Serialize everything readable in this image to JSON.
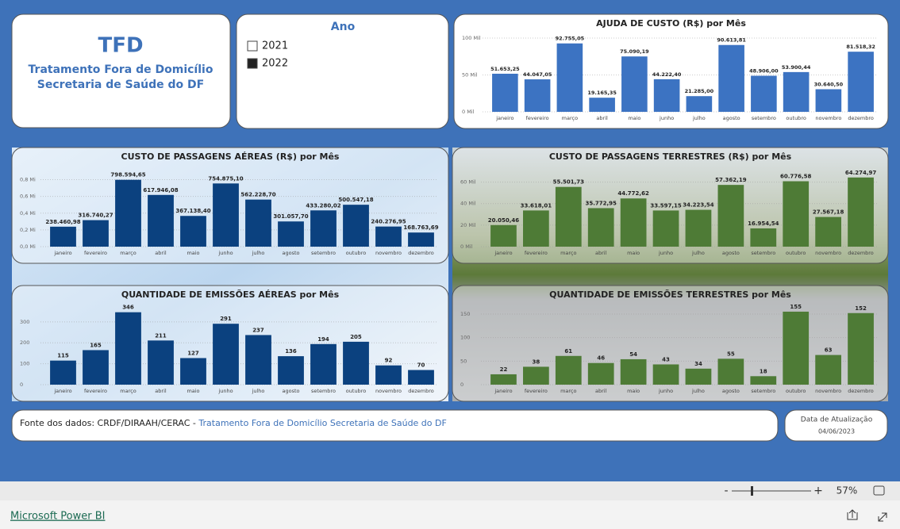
{
  "header": {
    "title": "TFD",
    "subtitle_1": "Tratamento Fora de Domicílio",
    "subtitle_2": "Secretaria de Saúde do DF"
  },
  "slicer": {
    "title": "Ano",
    "options": [
      {
        "label": "2021",
        "selected": false
      },
      {
        "label": "2022",
        "selected": true
      }
    ]
  },
  "chart_data": [
    {
      "type": "bar",
      "title": "AJUDA DE CUSTO (R$) por Mês",
      "color": "#3c73c2",
      "grid": true,
      "categories": [
        "janeiro",
        "fevereiro",
        "março",
        "abril",
        "maio",
        "junho",
        "julho",
        "agosto",
        "setembro",
        "outubro",
        "novembro",
        "dezembro"
      ],
      "values": [
        51653.25,
        44047.05,
        92755.05,
        19165.35,
        75090.19,
        44222.4,
        21285.0,
        90613.81,
        48906.0,
        53900.44,
        30640.5,
        81518.32
      ],
      "value_labels": [
        "51.653,25",
        "44.047,05",
        "92.755,05",
        "19.165,35",
        "75.090,19",
        "44.222,40",
        "21.285,00",
        "90.613,81",
        "48.906,00",
        "53.900,44",
        "30.640,50",
        "81.518,32"
      ],
      "ylim": [
        0,
        100000
      ],
      "yticks": [
        {
          "value": 0,
          "label": "0 Mil"
        },
        {
          "value": 50000,
          "label": "50 Mil"
        },
        {
          "value": 100000,
          "label": "100 Mil"
        }
      ]
    },
    {
      "type": "bar",
      "title": "CUSTO DE PASSAGENS AÉREAS (R$) por Mês",
      "color": "#0b417f",
      "grid": true,
      "categories": [
        "janeiro",
        "fevereiro",
        "março",
        "abril",
        "maio",
        "junho",
        "julho",
        "agosto",
        "setembro",
        "outubro",
        "novembro",
        "dezembro"
      ],
      "values": [
        238460.98,
        316740.27,
        798594.65,
        617946.08,
        367138.4,
        754875.1,
        562228.7,
        301057.7,
        433280.02,
        500547.18,
        240276.95,
        168763.69
      ],
      "value_labels": [
        "238.460,98",
        "316.740,27",
        "798.594,65",
        "617.946,08",
        "367.138,40",
        "754.875,10",
        "562.228,70",
        "301.057,70",
        "433.280,02",
        "500.547,18",
        "240.276,95",
        "168.763,69"
      ],
      "ylim": [
        0,
        900000
      ],
      "yticks": [
        {
          "value": 0,
          "label": "0,0 Mi"
        },
        {
          "value": 200000,
          "label": "0,2 Mi"
        },
        {
          "value": 400000,
          "label": "0,4 Mi"
        },
        {
          "value": 600000,
          "label": "0,6 Mi"
        },
        {
          "value": 800000,
          "label": "0,8 Mi"
        }
      ]
    },
    {
      "type": "bar",
      "title": "CUSTO DE PASSAGENS TERRESTRES (R$) por Mês",
      "color": "#4e7b36",
      "grid": true,
      "categories": [
        "janeiro",
        "fevereiro",
        "março",
        "abril",
        "maio",
        "junho",
        "julho",
        "agosto",
        "setembro",
        "outubro",
        "novembro",
        "dezembro"
      ],
      "values": [
        20050.46,
        33618.01,
        55501.73,
        35772.95,
        44772.62,
        33597.15,
        34223.54,
        57362.19,
        16954.54,
        60776.58,
        27567.18,
        64274.97
      ],
      "value_labels": [
        "20.050,46",
        "33.618,01",
        "55.501,73",
        "35.772,95",
        "44.772,62",
        "33.597,15",
        "34.223,54",
        "57.362,19",
        "16.954,54",
        "60.776,58",
        "27.567,18",
        "64.274,97"
      ],
      "ylim": [
        0,
        70000
      ],
      "yticks": [
        {
          "value": 0,
          "label": "0 Mil"
        },
        {
          "value": 20000,
          "label": "20 Mil"
        },
        {
          "value": 40000,
          "label": "40 Mil"
        },
        {
          "value": 60000,
          "label": "60 Mil"
        }
      ]
    },
    {
      "type": "bar",
      "title": "QUANTIDADE DE EMISSÕES AÉREAS por Mês",
      "color": "#0b417f",
      "grid": true,
      "categories": [
        "janeiro",
        "fevereiro",
        "março",
        "abril",
        "maio",
        "junho",
        "julho",
        "agosto",
        "setembro",
        "outubro",
        "novembro",
        "dezembro"
      ],
      "values": [
        115,
        165,
        346,
        211,
        127,
        291,
        237,
        136,
        194,
        205,
        92,
        70
      ],
      "ylim": [
        0,
        360
      ],
      "yticks": [
        0,
        100,
        200,
        300
      ]
    },
    {
      "type": "bar",
      "title": "QUANTIDADE DE EMISSÕES TERRESTRES por Mês",
      "color": "#4e7b36",
      "grid": true,
      "categories": [
        "janeiro",
        "fevereiro",
        "março",
        "abril",
        "maio",
        "junho",
        "julho",
        "agosto",
        "setembro",
        "outubro",
        "novembro",
        "dezembro"
      ],
      "values": [
        22,
        38,
        61,
        46,
        54,
        43,
        34,
        55,
        18,
        155,
        63,
        152
      ],
      "ylim": [
        0,
        160
      ],
      "yticks": [
        0,
        50,
        100,
        150
      ]
    }
  ],
  "source": {
    "label": "Fonte dos dados: CRDF/DIRAAH/CERAC - ",
    "link": "Tratamento Fora de Domicílio Secretaria de Saúde do DF"
  },
  "update": {
    "label": "Data de Atualização",
    "date": "04/06/2023"
  },
  "toolbar": {
    "zoom": "57%",
    "minus": "-",
    "plus": "+",
    "brand": "Microsoft Power BI"
  }
}
